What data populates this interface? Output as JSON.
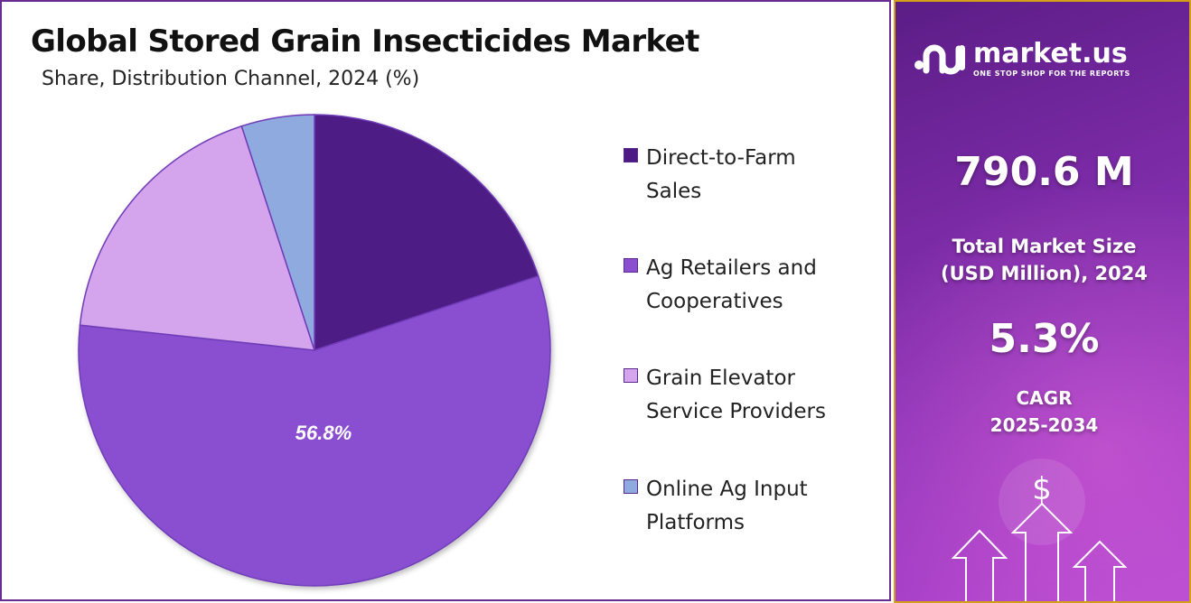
{
  "title": "Global Stored Grain Insecticides Market",
  "subtitle": "Share, Distribution Channel, 2024 (%)",
  "chart_data": {
    "type": "pie",
    "title": "Global Stored Grain Insecticides Market",
    "subtitle": "Share, Distribution Channel, 2024 (%)",
    "slices": [
      {
        "label": "Direct-to-Farm Sales",
        "value": 19.9,
        "color": "#4d1a85",
        "data_label": ""
      },
      {
        "label": "Ag Retailers and Cooperatives",
        "value": 56.8,
        "color": "#8a4fd0",
        "data_label": "56.8%"
      },
      {
        "label": "Grain Elevator Service Providers",
        "value": 18.3,
        "color": "#d4a4ec",
        "data_label": ""
      },
      {
        "label": "Online Ag Input Platforms",
        "value": 5.0,
        "color": "#8faadf",
        "data_label": ""
      }
    ],
    "legend_position": "right"
  },
  "legend": [
    {
      "line1": "Direct-to-Farm",
      "line2": "Sales",
      "color": "#4d1a85"
    },
    {
      "line1": "Ag Retailers and",
      "line2": "Cooperatives",
      "color": "#8a4fd0"
    },
    {
      "line1": "Grain Elevator",
      "line2": "Service Providers",
      "color": "#d4a4ec"
    },
    {
      "line1": "Online Ag Input",
      "line2": "Platforms",
      "color": "#8faadf"
    }
  ],
  "side": {
    "brand": "market.us",
    "tagline": "ONE STOP SHOP FOR THE REPORTS",
    "market_value": "790.6 M",
    "market_label_line1": "Total Market Size",
    "market_label_line2": "(USD Million), 2024",
    "cagr_value": "5.3%",
    "cagr_label_line1": "CAGR",
    "cagr_label_line2": "2025-2034",
    "currency_symbol": "$"
  }
}
